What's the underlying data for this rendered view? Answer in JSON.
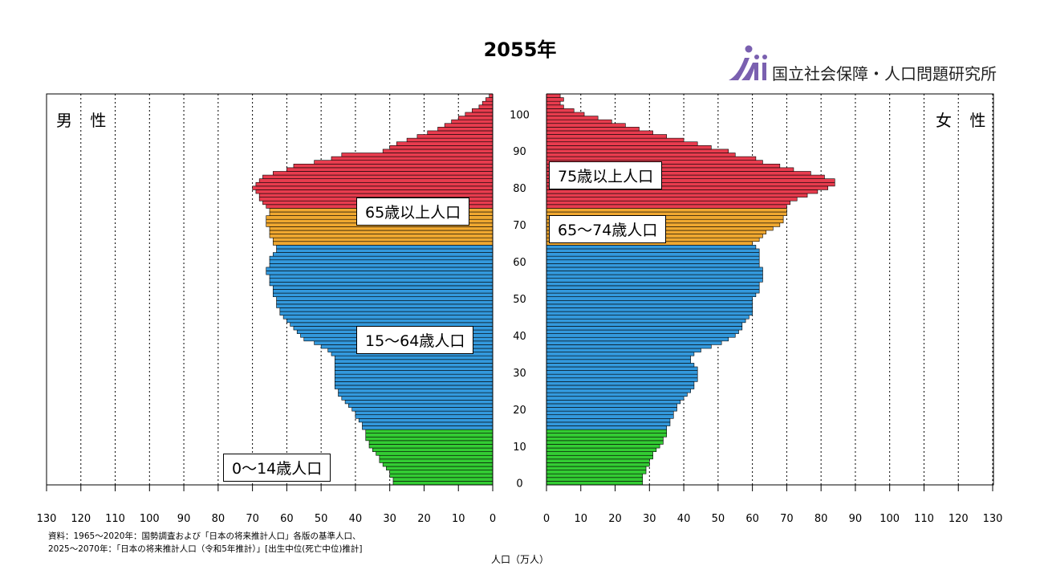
{
  "title": "2055年",
  "org_name": "国立社会保障・人口問題研究所",
  "side_labels": {
    "male": "男 性",
    "female": "女 性"
  },
  "group_labels": {
    "male_65plus": "65歳以上人口",
    "male_15_64": "15〜64歳人口",
    "male_0_14": "0〜14歳人口",
    "female_75plus": "75歳以上人口",
    "female_65_74": "65〜74歳人口"
  },
  "source_note": {
    "line1": "資料：1965〜2020年：国勢調査および「日本の将来推計人口」各版の基準人口、",
    "line2": "2025〜2070年：「日本の将来推計人口（令和5年推計）」[出生中位(死亡中位)推計]"
  },
  "x_axis_label": "人口（万人）",
  "colors": {
    "age_0_14": "#33cc33",
    "age_15_64": "#3399dd",
    "age_65_74": "#f0a830",
    "age_75plus": "#e83c4e",
    "logo": "#7a60b0"
  },
  "chart_data": {
    "type": "population_pyramid",
    "title": "2055年",
    "x_unit": "万人",
    "xlim": [
      0,
      130
    ],
    "age_range": [
      0,
      105
    ],
    "age_ticks": [
      0,
      10,
      20,
      30,
      40,
      50,
      60,
      70,
      80,
      90,
      100
    ],
    "x_ticks_male": [
      130,
      120,
      110,
      100,
      90,
      80,
      70,
      60,
      50,
      40,
      30,
      20,
      10,
      0
    ],
    "x_ticks_female": [
      0,
      10,
      20,
      30,
      40,
      50,
      60,
      70,
      80,
      90,
      100,
      110,
      120,
      130
    ],
    "age_groups": [
      {
        "name": "0〜14歳",
        "from": 0,
        "to": 14,
        "color": "#33cc33"
      },
      {
        "name": "15〜64歳",
        "from": 15,
        "to": 64,
        "color": "#3399dd"
      },
      {
        "name": "65〜74歳",
        "from": 65,
        "to": 74,
        "color": "#f0a830"
      },
      {
        "name": "75歳以上",
        "from": 75,
        "to": 105,
        "color": "#e83c4e"
      }
    ],
    "male": [
      29,
      29,
      30,
      30,
      31,
      32,
      33,
      33,
      34,
      35,
      36,
      36,
      37,
      37,
      37,
      38,
      38,
      39,
      40,
      40,
      41,
      42,
      43,
      44,
      45,
      45,
      46,
      46,
      46,
      46,
      46,
      46,
      46,
      46,
      46,
      47,
      48,
      50,
      52,
      55,
      56,
      57,
      58,
      59,
      60,
      61,
      62,
      62,
      63,
      63,
      63,
      64,
      64,
      64,
      65,
      65,
      65,
      66,
      66,
      65,
      65,
      65,
      64,
      63,
      63,
      64,
      64,
      65,
      65,
      65,
      66,
      66,
      66,
      65,
      65,
      66,
      67,
      68,
      68,
      69,
      70,
      69,
      68,
      67,
      64,
      60,
      58,
      52,
      47,
      44,
      32,
      30,
      28,
      25,
      22,
      19,
      16,
      14,
      12,
      10,
      8,
      6,
      4,
      3,
      2,
      1
    ],
    "female": [
      28,
      28,
      28,
      29,
      29,
      30,
      30,
      31,
      31,
      32,
      33,
      34,
      34,
      35,
      35,
      35,
      36,
      36,
      37,
      37,
      38,
      38,
      39,
      40,
      41,
      42,
      43,
      43,
      44,
      44,
      44,
      44,
      43,
      42,
      42,
      43,
      45,
      48,
      51,
      53,
      55,
      56,
      57,
      57,
      58,
      59,
      60,
      60,
      60,
      60,
      60,
      61,
      62,
      62,
      62,
      63,
      63,
      63,
      63,
      62,
      62,
      62,
      62,
      62,
      61,
      60,
      62,
      63,
      64,
      66,
      68,
      69,
      69,
      70,
      70,
      70,
      71,
      73,
      76,
      79,
      82,
      84,
      84,
      81,
      77,
      72,
      68,
      63,
      61,
      55,
      53,
      48,
      44,
      40,
      35,
      31,
      27,
      23,
      19,
      15,
      11,
      8,
      5,
      4,
      5,
      4
    ]
  }
}
